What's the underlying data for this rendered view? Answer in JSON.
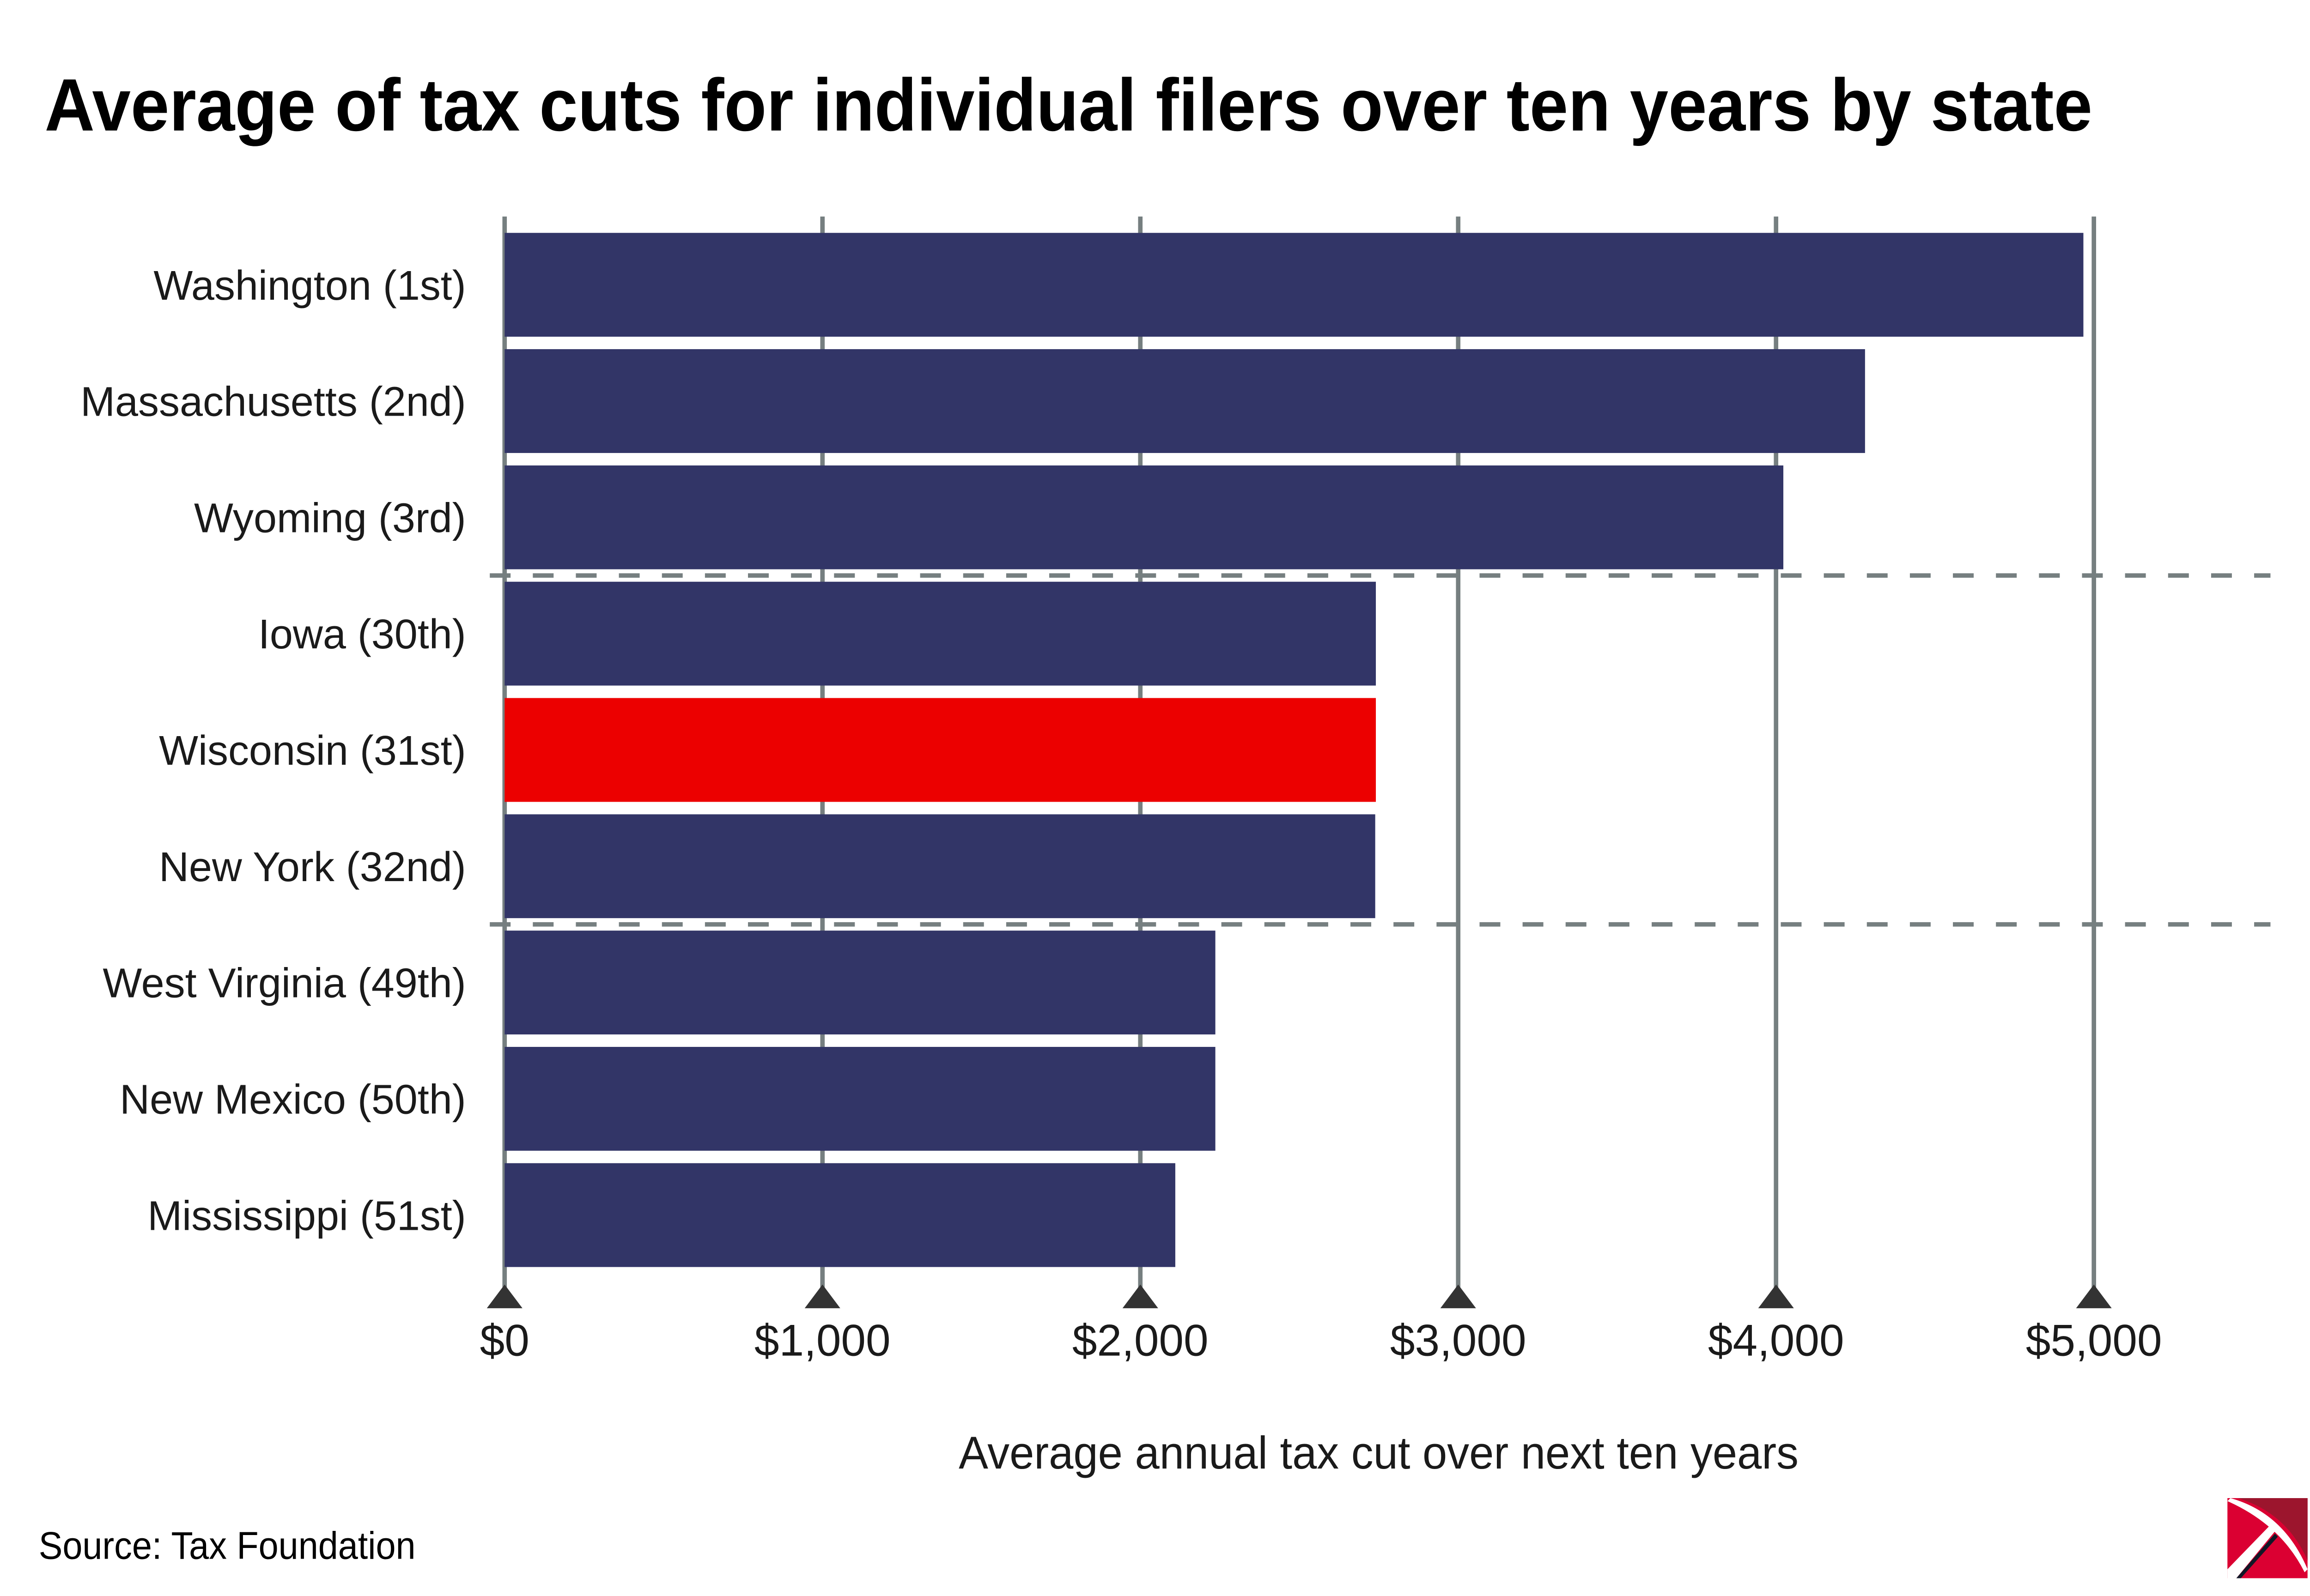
{
  "chart_data": {
    "type": "bar",
    "orientation": "horizontal",
    "title": "Average of tax cuts for individual filers over ten years by state",
    "xlabel": "Average annual tax cut over next ten years",
    "ylabel": "",
    "xlim": [
      0,
      5000
    ],
    "grid": true,
    "categories": [
      "Washington (1st)",
      "Massachusetts (2nd)",
      "Wyoming (3rd)",
      "Iowa (30th)",
      "Wisconsin (31st)",
      "New York (32nd)",
      "West Virginia (49th)",
      "New Mexico (50th)",
      "Mississippi (51st)"
    ],
    "values": [
      4967,
      4280,
      4023,
      2741,
      2741,
      2739,
      2236,
      2236,
      2110
    ],
    "highlight_index": 4,
    "group_separators_after": [
      2,
      5
    ],
    "xticks": [
      0,
      1000,
      2000,
      3000,
      4000,
      5000
    ],
    "xtick_labels": [
      "$0",
      "$1,000",
      "$2,000",
      "$3,000",
      "$4,000",
      "$5,000"
    ],
    "colors": {
      "bar": "#323567",
      "highlight": "#ec0000",
      "grid": "#767f80",
      "tick_marker": "#333333"
    }
  },
  "source": "Source: Tax Foundation",
  "logo": {
    "name": "Tax Foundation",
    "colors": [
      "#db0032",
      "#9c152d"
    ]
  }
}
